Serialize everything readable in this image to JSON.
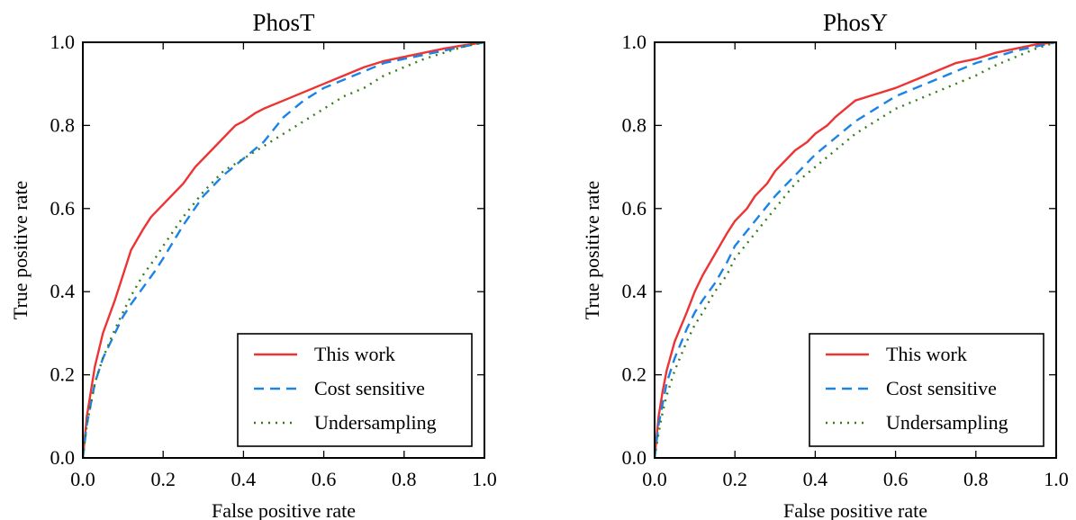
{
  "chart_data": [
    {
      "type": "line",
      "title": "PhosT",
      "xlabel": "False positive rate",
      "ylabel": "True positive rate",
      "xlim": [
        0.0,
        1.0
      ],
      "ylim": [
        0.0,
        1.0
      ],
      "xticks": [
        "0.0",
        "0.2",
        "0.4",
        "0.6",
        "0.8",
        "1.0"
      ],
      "yticks": [
        "0.0",
        "0.2",
        "0.4",
        "0.6",
        "0.8",
        "1.0"
      ],
      "grid": false,
      "legend_position": "bottom-right",
      "series": [
        {
          "name": "This work",
          "color": "#ee3333",
          "dash": "solid",
          "x": [
            0,
            0.01,
            0.02,
            0.03,
            0.05,
            0.08,
            0.1,
            0.12,
            0.15,
            0.17,
            0.2,
            0.22,
            0.25,
            0.28,
            0.3,
            0.33,
            0.35,
            0.38,
            0.4,
            0.43,
            0.45,
            0.5,
            0.55,
            0.6,
            0.65,
            0.7,
            0.75,
            0.8,
            0.85,
            0.9,
            0.95,
            1.0
          ],
          "y": [
            0,
            0.1,
            0.16,
            0.22,
            0.3,
            0.38,
            0.44,
            0.5,
            0.55,
            0.58,
            0.61,
            0.63,
            0.66,
            0.7,
            0.72,
            0.75,
            0.77,
            0.8,
            0.81,
            0.83,
            0.84,
            0.86,
            0.88,
            0.9,
            0.92,
            0.94,
            0.955,
            0.965,
            0.975,
            0.985,
            0.993,
            1.0
          ]
        },
        {
          "name": "Cost sensitive",
          "color": "#1a84e6",
          "dash": "dashed",
          "x": [
            0,
            0.01,
            0.02,
            0.03,
            0.05,
            0.08,
            0.1,
            0.12,
            0.15,
            0.18,
            0.2,
            0.25,
            0.3,
            0.35,
            0.4,
            0.45,
            0.5,
            0.55,
            0.6,
            0.65,
            0.7,
            0.75,
            0.8,
            0.85,
            0.9,
            0.95,
            1.0
          ],
          "y": [
            0,
            0.08,
            0.13,
            0.18,
            0.24,
            0.3,
            0.34,
            0.37,
            0.41,
            0.45,
            0.48,
            0.56,
            0.63,
            0.68,
            0.72,
            0.76,
            0.82,
            0.86,
            0.89,
            0.91,
            0.93,
            0.95,
            0.96,
            0.97,
            0.98,
            0.99,
            1.0
          ]
        },
        {
          "name": "Undersampling",
          "color": "#3a7a1a",
          "dash": "dotted",
          "x": [
            0,
            0.01,
            0.02,
            0.03,
            0.05,
            0.08,
            0.1,
            0.12,
            0.15,
            0.18,
            0.2,
            0.25,
            0.3,
            0.35,
            0.4,
            0.45,
            0.5,
            0.55,
            0.6,
            0.65,
            0.7,
            0.75,
            0.8,
            0.85,
            0.9,
            0.95,
            1.0
          ],
          "y": [
            0,
            0.08,
            0.13,
            0.18,
            0.24,
            0.31,
            0.35,
            0.39,
            0.44,
            0.48,
            0.51,
            0.58,
            0.64,
            0.69,
            0.72,
            0.75,
            0.78,
            0.81,
            0.84,
            0.87,
            0.89,
            0.92,
            0.94,
            0.96,
            0.975,
            0.99,
            1.0
          ]
        }
      ]
    },
    {
      "type": "line",
      "title": "PhosY",
      "xlabel": "False positive rate",
      "ylabel": "True positive rate",
      "xlim": [
        0.0,
        1.0
      ],
      "ylim": [
        0.0,
        1.0
      ],
      "xticks": [
        "0.0",
        "0.2",
        "0.4",
        "0.6",
        "0.8",
        "1.0"
      ],
      "yticks": [
        "0.0",
        "0.2",
        "0.4",
        "0.6",
        "0.8",
        "1.0"
      ],
      "grid": false,
      "legend_position": "bottom-right",
      "series": [
        {
          "name": "This work",
          "color": "#ee3333",
          "dash": "solid",
          "x": [
            0,
            0.01,
            0.02,
            0.03,
            0.05,
            0.08,
            0.1,
            0.12,
            0.15,
            0.18,
            0.2,
            0.23,
            0.25,
            0.28,
            0.3,
            0.33,
            0.35,
            0.38,
            0.4,
            0.43,
            0.45,
            0.5,
            0.55,
            0.6,
            0.65,
            0.7,
            0.75,
            0.8,
            0.85,
            0.9,
            0.95,
            1.0
          ],
          "y": [
            0,
            0.1,
            0.16,
            0.21,
            0.28,
            0.35,
            0.4,
            0.44,
            0.49,
            0.54,
            0.57,
            0.6,
            0.63,
            0.66,
            0.69,
            0.72,
            0.74,
            0.76,
            0.78,
            0.8,
            0.82,
            0.86,
            0.875,
            0.89,
            0.91,
            0.93,
            0.95,
            0.96,
            0.975,
            0.985,
            0.995,
            1.0
          ]
        },
        {
          "name": "Cost sensitive",
          "color": "#1a84e6",
          "dash": "dashed",
          "x": [
            0,
            0.01,
            0.02,
            0.03,
            0.05,
            0.08,
            0.1,
            0.12,
            0.15,
            0.18,
            0.2,
            0.25,
            0.3,
            0.35,
            0.4,
            0.45,
            0.5,
            0.55,
            0.6,
            0.65,
            0.7,
            0.75,
            0.8,
            0.85,
            0.9,
            0.95,
            1.0
          ],
          "y": [
            0,
            0.08,
            0.13,
            0.18,
            0.24,
            0.31,
            0.35,
            0.38,
            0.42,
            0.47,
            0.51,
            0.57,
            0.63,
            0.68,
            0.73,
            0.77,
            0.81,
            0.84,
            0.87,
            0.89,
            0.91,
            0.93,
            0.95,
            0.965,
            0.98,
            0.99,
            1.0
          ]
        },
        {
          "name": "Undersampling",
          "color": "#3a7a1a",
          "dash": "dotted",
          "x": [
            0,
            0.01,
            0.02,
            0.03,
            0.05,
            0.08,
            0.1,
            0.12,
            0.15,
            0.18,
            0.2,
            0.25,
            0.3,
            0.35,
            0.4,
            0.45,
            0.5,
            0.55,
            0.6,
            0.65,
            0.7,
            0.75,
            0.8,
            0.85,
            0.9,
            0.95,
            1.0
          ],
          "y": [
            0,
            0.06,
            0.11,
            0.15,
            0.21,
            0.28,
            0.32,
            0.35,
            0.4,
            0.44,
            0.48,
            0.54,
            0.6,
            0.66,
            0.7,
            0.74,
            0.78,
            0.81,
            0.84,
            0.86,
            0.88,
            0.9,
            0.92,
            0.945,
            0.965,
            0.985,
            1.0
          ]
        }
      ]
    }
  ]
}
